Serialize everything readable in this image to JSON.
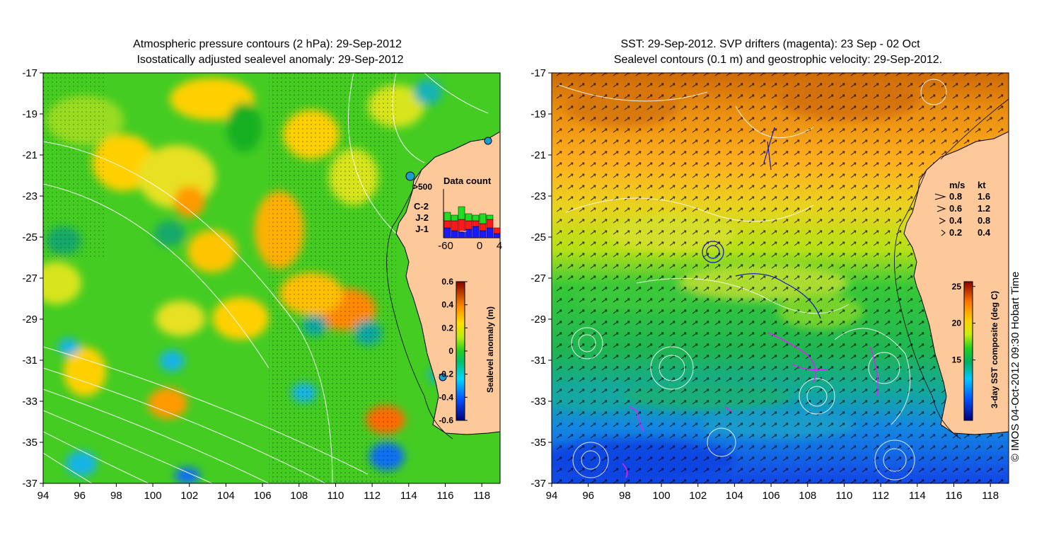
{
  "left_panel": {
    "title_line1": "Atmospheric pressure contours (2 hPa): 29-Sep-2012",
    "title_line2": "Isostatically adjusted sealevel anomaly: 29-Sep-2012",
    "depth_label": ">500",
    "data_count": {
      "title": "Data count",
      "series": [
        {
          "name": "C-2",
          "color": "#22dd22"
        },
        {
          "name": "J-2",
          "color": "#ff1a1a"
        },
        {
          "name": "J-1",
          "color": "#1a1aff"
        }
      ],
      "x_ticks": [
        "-60",
        "0",
        "4"
      ]
    },
    "colorbar": {
      "label": "Sealevel anomaly (m)",
      "ticks": [
        "0.6",
        "0.4",
        "0.2",
        "0",
        "-0.2",
        "-0.4",
        "-0.6"
      ]
    }
  },
  "right_panel": {
    "title_line1": "SST: 29-Sep-2012. SVP drifters (magenta): 23 Sep - 02 Oct",
    "title_line2": "Sealevel contours (0.1 m) and geostrophic velocity: 29-Sep-2012.",
    "velocity_legend": {
      "header_ms": "m/s",
      "header_kt": "kt",
      "rows": [
        {
          "ms": "0.8",
          "kt": "1.6"
        },
        {
          "ms": "0.6",
          "kt": "1.2"
        },
        {
          "ms": "0.4",
          "kt": "0.8"
        },
        {
          "ms": "0.2",
          "kt": "0.4"
        }
      ]
    },
    "colorbar": {
      "label": "3-day SST composite (deg C)",
      "ticks": [
        "25",
        "20",
        "15"
      ]
    }
  },
  "axes": {
    "lat_ticks": [
      "-17",
      "-19",
      "-21",
      "-23",
      "-25",
      "-27",
      "-29",
      "-31",
      "-33",
      "-35",
      "-37"
    ],
    "lon_ticks": [
      "94",
      "96",
      "98",
      "100",
      "102",
      "104",
      "106",
      "108",
      "110",
      "112",
      "114",
      "116",
      "118"
    ]
  },
  "credit": "© IMOS 04-Oct-2012 09:30 Hobart Time"
}
